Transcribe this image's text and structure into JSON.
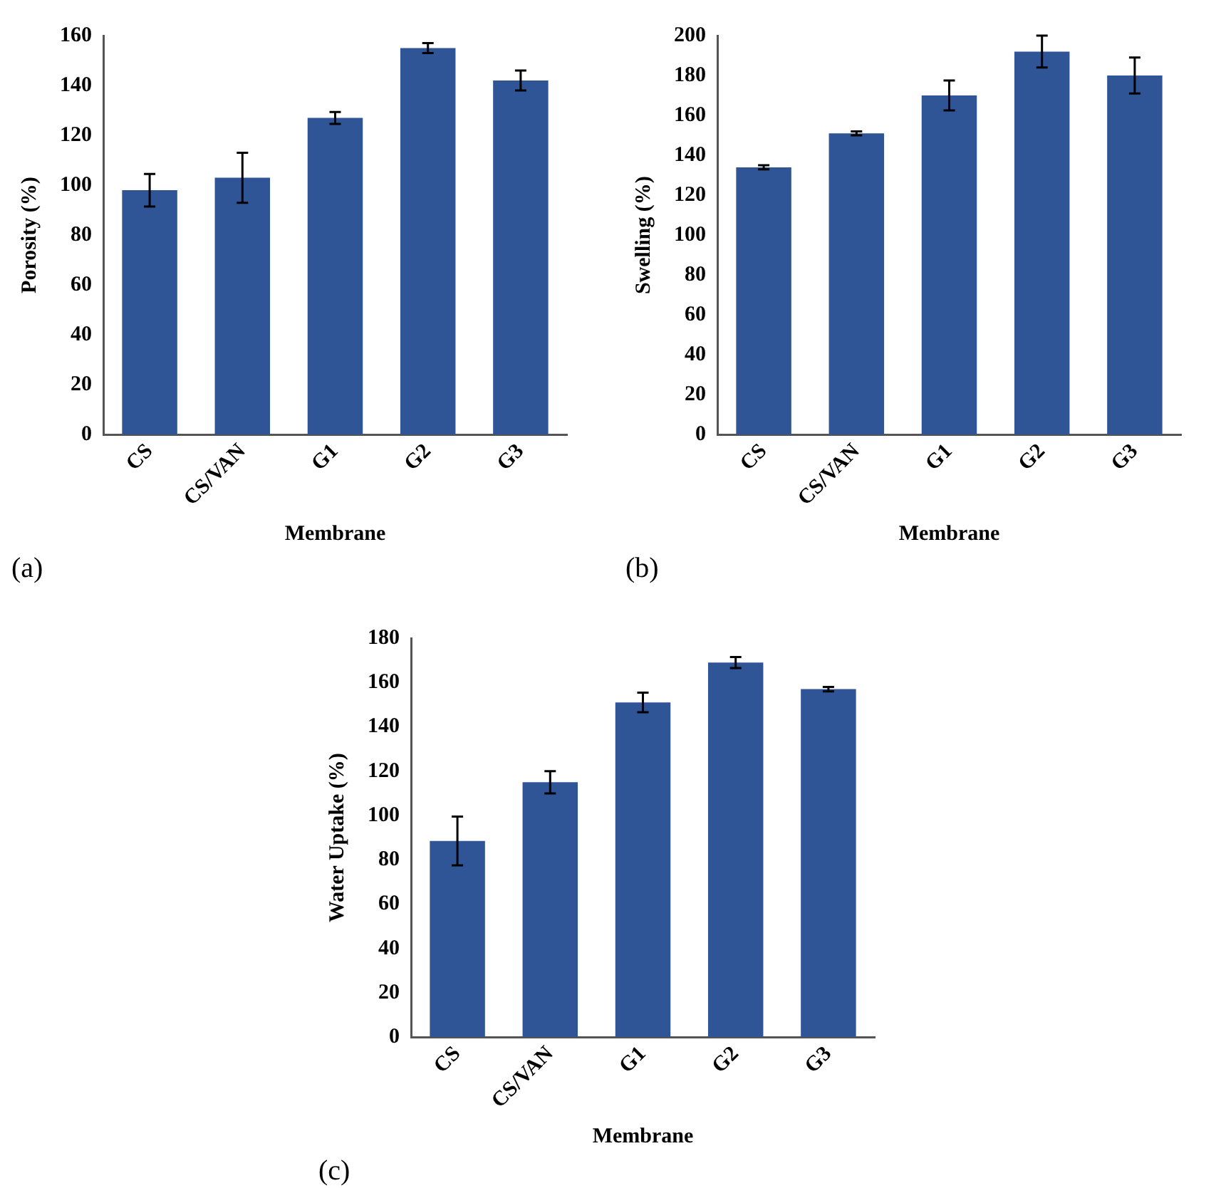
{
  "chart_data": [
    {
      "type": "bar",
      "categories": [
        "CS",
        "CS/VAN",
        "G1",
        "G2",
        "G3"
      ],
      "values": [
        98,
        103,
        127,
        155,
        142
      ],
      "errors": [
        6.5,
        10,
        2.4,
        2,
        4
      ],
      "color": "#2f5597",
      "xlabel": "Membrane",
      "ylabel": "Porosity (%)",
      "ylim": [
        0,
        160
      ],
      "yticks": [
        0,
        20,
        40,
        60,
        80,
        100,
        120,
        140,
        160
      ],
      "grid": false,
      "annotations": [
        "(a)"
      ]
    },
    {
      "type": "bar",
      "categories": [
        "CS",
        "CS/VAN",
        "G1",
        "G2",
        "G3"
      ],
      "values": [
        134,
        151,
        170,
        192,
        180
      ],
      "errors": [
        1,
        1,
        7.5,
        8,
        9
      ],
      "color": "#2f5597",
      "xlabel": "Membrane",
      "ylabel": "Swelling (%)",
      "ylim": [
        0,
        200
      ],
      "yticks": [
        0,
        20,
        40,
        60,
        80,
        100,
        120,
        140,
        160,
        180,
        200
      ],
      "grid": false,
      "annotations": [
        "(b)"
      ]
    },
    {
      "type": "bar",
      "categories": [
        "CS",
        "CS/VAN",
        "G1",
        "G2",
        "G3"
      ],
      "values": [
        88.5,
        115,
        151,
        169,
        157
      ],
      "errors": [
        11,
        5,
        4.4,
        2.5,
        1
      ],
      "color": "#2f5597",
      "xlabel": "Membrane",
      "ylabel": "Water Uptake (%)",
      "ylim": [
        0,
        180
      ],
      "yticks": [
        0,
        20,
        40,
        60,
        80,
        100,
        120,
        140,
        160,
        180
      ],
      "grid": false,
      "annotations": [
        "(c)"
      ]
    }
  ]
}
